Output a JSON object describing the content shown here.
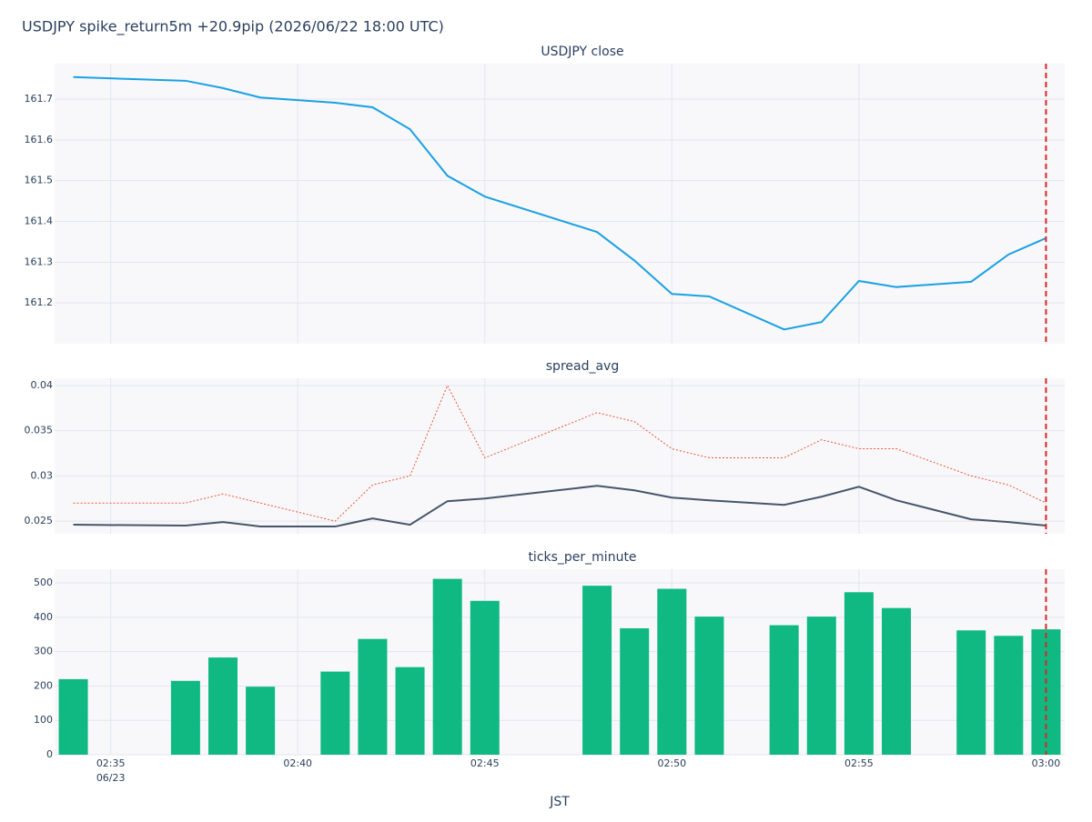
{
  "title": "USDJPY spike_return5m +20.9pip (2026/06/22 18:00 UTC)",
  "chart_data": [
    {
      "type": "line",
      "title": "USDJPY close",
      "x": [
        "02:34",
        "02:37",
        "02:38",
        "02:39",
        "02:41",
        "02:42",
        "02:43",
        "02:44",
        "02:45",
        "02:48",
        "02:49",
        "02:50",
        "02:51",
        "02:53",
        "02:54",
        "02:55",
        "02:56",
        "02:58",
        "02:59",
        "03:00"
      ],
      "series": [
        {
          "color": "#1ba1e2",
          "dash": false,
          "values": [
            161.754,
            161.745,
            161.727,
            161.704,
            161.691,
            161.68,
            161.626,
            161.512,
            161.461,
            161.374,
            161.304,
            161.222,
            161.216,
            161.135,
            161.153,
            161.254,
            161.239,
            161.252,
            161.319,
            161.359
          ]
        }
      ],
      "xlim": [
        "02:33:30",
        "03:00:30"
      ],
      "ylim": [
        161.1,
        161.787
      ],
      "yticks": [
        161.2,
        161.3,
        161.4,
        161.5,
        161.6,
        161.7
      ],
      "grid": true,
      "vline": {
        "x": "03:00",
        "color": "#d62728"
      }
    },
    {
      "type": "line",
      "title": "spread_avg",
      "x": [
        "02:34",
        "02:37",
        "02:38",
        "02:39",
        "02:41",
        "02:42",
        "02:43",
        "02:44",
        "02:45",
        "02:48",
        "02:49",
        "02:50",
        "02:51",
        "02:53",
        "02:54",
        "02:55",
        "02:56",
        "02:58",
        "02:59",
        "03:00"
      ],
      "series": [
        {
          "color": "#475569",
          "dash": false,
          "values": [
            0.0246,
            0.0245,
            0.0249,
            0.0244,
            0.0244,
            0.0253,
            0.0246,
            0.0272,
            0.0275,
            0.0289,
            0.0284,
            0.0276,
            0.0273,
            0.0268,
            0.0277,
            0.0288,
            0.0273,
            0.0252,
            0.0249,
            0.0245
          ]
        },
        {
          "color": "#ef553b",
          "dash": true,
          "values": [
            0.027,
            0.027,
            0.028,
            0.027,
            0.025,
            0.029,
            0.03,
            0.04,
            0.032,
            0.037,
            0.036,
            0.033,
            0.032,
            0.032,
            0.034,
            0.033,
            0.033,
            0.03,
            0.029,
            0.027
          ]
        }
      ],
      "xlim": [
        "02:33:30",
        "03:00:30"
      ],
      "ylim": [
        0.0236,
        0.0408
      ],
      "yticks": [
        0.025,
        0.03,
        0.035,
        0.04
      ],
      "grid": true,
      "vline": {
        "x": "03:00",
        "color": "#d62728"
      }
    },
    {
      "type": "bar",
      "title": "ticks_per_minute",
      "x": [
        "02:34",
        "02:37",
        "02:38",
        "02:39",
        "02:41",
        "02:42",
        "02:43",
        "02:44",
        "02:45",
        "02:48",
        "02:49",
        "02:50",
        "02:51",
        "02:53",
        "02:54",
        "02:55",
        "02:56",
        "02:58",
        "02:59",
        "03:00"
      ],
      "series": [
        {
          "color": "#10b981",
          "values": [
            220,
            215,
            283,
            198,
            242,
            337,
            255,
            512,
            448,
            492,
            368,
            483,
            402,
            377,
            402,
            473,
            427,
            362,
            346,
            365
          ]
        }
      ],
      "xlim": [
        "02:33:30",
        "03:00:30"
      ],
      "ylim": [
        0,
        540
      ],
      "yticks": [
        0,
        100,
        200,
        300,
        400,
        500
      ],
      "grid": true,
      "xticks": [
        "02:35",
        "02:40",
        "02:45",
        "02:50",
        "02:55",
        "03:00"
      ],
      "x_date_label": "06/23",
      "xlabel": "JST",
      "vline": {
        "x": "03:00",
        "color": "#d62728"
      }
    }
  ]
}
